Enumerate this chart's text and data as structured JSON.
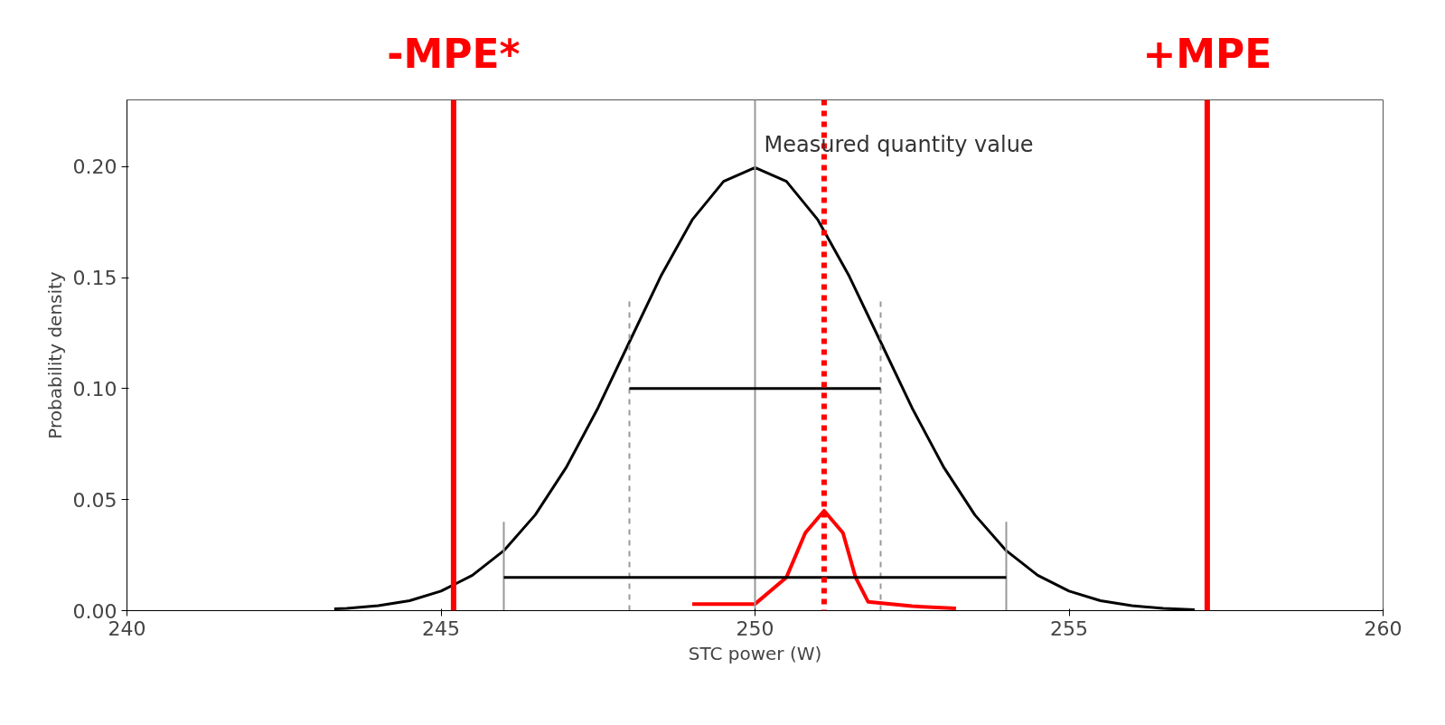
{
  "chart_data": {
    "type": "line",
    "xlabel": "STC power (W)",
    "ylabel": "Probability density",
    "xlim": [
      240,
      260
    ],
    "xticks": [
      240,
      245,
      250,
      255,
      260
    ],
    "ylim": [
      0,
      0.23
    ],
    "yticks": [
      {
        "value": 0,
        "label": "0.00"
      },
      {
        "value": 0.05,
        "label": "0.05"
      },
      {
        "value": 0.1,
        "label": "0.10"
      },
      {
        "value": 0.15,
        "label": "0.15"
      },
      {
        "value": 0.2,
        "label": "0.20"
      }
    ],
    "grid": false,
    "marker": "none",
    "series": [
      {
        "color": "#000000",
        "line_style": "solid",
        "x": [
          243.3,
          243.5,
          244,
          244.5,
          245,
          245.5,
          246,
          246.5,
          247,
          247.5,
          248,
          248.5,
          249,
          249.5,
          250,
          250.5,
          251,
          251.5,
          252,
          252.5,
          253,
          253.5,
          254,
          254.5,
          255,
          255.5,
          256,
          256.5,
          257
        ],
        "values": [
          0.0008,
          0.001,
          0.0022,
          0.0045,
          0.0088,
          0.0159,
          0.027,
          0.0431,
          0.0648,
          0.0913,
          0.121,
          0.1506,
          0.176,
          0.1933,
          0.1995,
          0.1933,
          0.176,
          0.1506,
          0.121,
          0.0913,
          0.0648,
          0.0431,
          0.027,
          0.0159,
          0.0088,
          0.0045,
          0.0022,
          0.001,
          0.0004
        ]
      },
      {
        "color": "#ff0000",
        "line_style": "solid",
        "x": [
          249,
          250,
          250.5,
          250.8,
          251.1,
          251.4,
          251.6,
          251.8,
          252.5,
          253.2
        ],
        "values": [
          0.003,
          0.003,
          0.015,
          0.035,
          0.045,
          0.035,
          0.015,
          0.004,
          0.002,
          0.001
        ]
      },
      {
        "color": "#999999",
        "line_style": "dashed",
        "x": [
          248,
          248
        ],
        "values": [
          0,
          0.14
        ]
      },
      {
        "color": "#999999",
        "line_style": "dashed",
        "x": [
          252,
          252
        ],
        "values": [
          0,
          0.14
        ]
      },
      {
        "color": "#999999",
        "line_style": "solid",
        "x": [
          246,
          246
        ],
        "values": [
          0,
          0.04
        ]
      },
      {
        "color": "#999999",
        "line_style": "solid",
        "x": [
          254,
          254
        ],
        "values": [
          0,
          0.04
        ]
      },
      {
        "color": "#999999",
        "line_style": "solid",
        "x": [
          250,
          250
        ],
        "values": [
          0,
          0.23
        ]
      },
      {
        "color": "#000000",
        "line_style": "solid",
        "x": [
          248,
          252
        ],
        "values": [
          0.1,
          0.1
        ]
      },
      {
        "color": "#000000",
        "line_style": "solid",
        "x": [
          246,
          254
        ],
        "values": [
          0.015,
          0.015
        ]
      }
    ],
    "ref_lines": [
      {
        "axis": "x",
        "value": 245.2,
        "label": "-MPE*",
        "color": "#ff0000",
        "line_style": "solid"
      },
      {
        "axis": "x",
        "value": 257.2,
        "label": "+MPE",
        "color": "#ff0000",
        "line_style": "solid"
      },
      {
        "axis": "x",
        "value": 251.1,
        "color": "#ff0000",
        "line_style": "dashed"
      }
    ],
    "annotations": [
      {
        "text": "Measured quantity value",
        "x": 250,
        "y": 0.2
      }
    ]
  }
}
